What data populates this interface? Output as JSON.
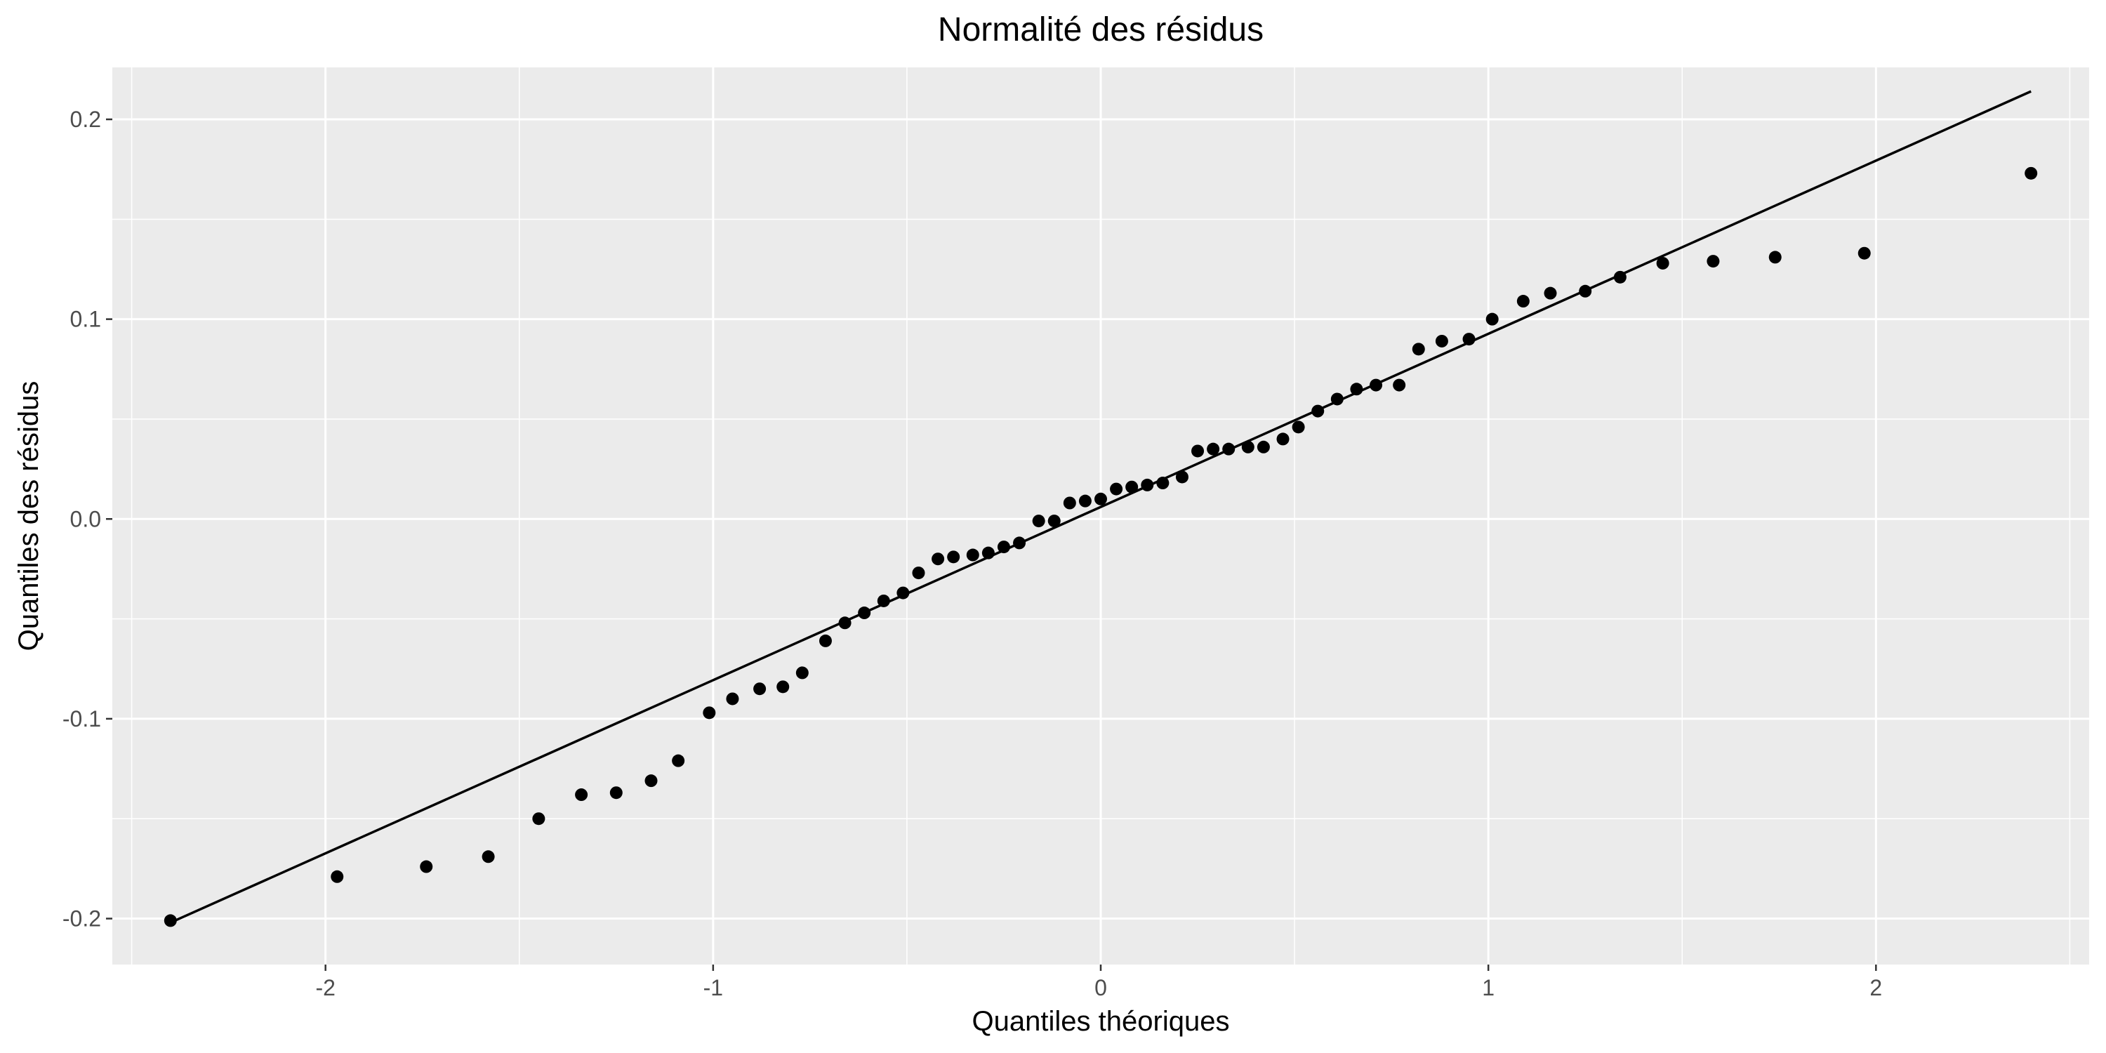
{
  "chart_data": {
    "type": "scatter",
    "title": "Normalité des résidus",
    "xlabel": "Quantiles théoriques",
    "ylabel": "Quantiles des résidus",
    "xlim": [
      -2.55,
      2.55
    ],
    "ylim": [
      -0.223,
      0.226
    ],
    "x_ticks": [
      -2,
      -1,
      0,
      1,
      2
    ],
    "x_tick_labels": [
      "-2",
      "-1",
      "0",
      "1",
      "2"
    ],
    "y_ticks": [
      -0.2,
      -0.1,
      0.0,
      0.1,
      0.2
    ],
    "y_tick_labels": [
      "-0.2",
      "-0.1",
      "0.0",
      "0.1",
      "0.2"
    ],
    "grid": true,
    "background": "#ebebeb",
    "point_color": "#000000",
    "series": [
      {
        "points": [
          [
            -2.4,
            -0.201
          ],
          [
            -1.97,
            -0.179
          ],
          [
            -1.74,
            -0.174
          ],
          [
            -1.58,
            -0.169
          ],
          [
            -1.45,
            -0.15
          ],
          [
            -1.34,
            -0.138
          ],
          [
            -1.25,
            -0.137
          ],
          [
            -1.16,
            -0.131
          ],
          [
            -1.09,
            -0.121
          ],
          [
            -1.01,
            -0.097
          ],
          [
            -0.95,
            -0.09
          ],
          [
            -0.88,
            -0.085
          ],
          [
            -0.82,
            -0.084
          ],
          [
            -0.77,
            -0.077
          ],
          [
            -0.71,
            -0.061
          ],
          [
            -0.66,
            -0.052
          ],
          [
            -0.61,
            -0.047
          ],
          [
            -0.56,
            -0.041
          ],
          [
            -0.51,
            -0.037
          ],
          [
            -0.47,
            -0.027
          ],
          [
            -0.42,
            -0.02
          ],
          [
            -0.38,
            -0.019
          ],
          [
            -0.33,
            -0.018
          ],
          [
            -0.29,
            -0.017
          ],
          [
            -0.25,
            -0.014
          ],
          [
            -0.21,
            -0.012
          ],
          [
            -0.16,
            -0.001
          ],
          [
            -0.12,
            -0.001
          ],
          [
            -0.08,
            0.008
          ],
          [
            -0.04,
            0.009
          ],
          [
            0.0,
            0.01
          ],
          [
            0.04,
            0.015
          ],
          [
            0.08,
            0.016
          ],
          [
            0.12,
            0.017
          ],
          [
            0.16,
            0.018
          ],
          [
            0.21,
            0.021
          ],
          [
            0.25,
            0.034
          ],
          [
            0.29,
            0.035
          ],
          [
            0.33,
            0.035
          ],
          [
            0.38,
            0.036
          ],
          [
            0.42,
            0.036
          ],
          [
            0.47,
            0.04
          ],
          [
            0.51,
            0.046
          ],
          [
            0.56,
            0.054
          ],
          [
            0.61,
            0.06
          ],
          [
            0.66,
            0.065
          ],
          [
            0.71,
            0.067
          ],
          [
            0.77,
            0.067
          ],
          [
            0.82,
            0.085
          ],
          [
            0.88,
            0.089
          ],
          [
            0.95,
            0.09
          ],
          [
            1.01,
            0.1
          ],
          [
            1.09,
            0.109
          ],
          [
            1.16,
            0.113
          ],
          [
            1.25,
            0.114
          ],
          [
            1.34,
            0.121
          ],
          [
            1.45,
            0.128
          ],
          [
            1.58,
            0.129
          ],
          [
            1.74,
            0.131
          ],
          [
            1.97,
            0.133
          ],
          [
            2.4,
            0.173
          ]
        ]
      }
    ],
    "reference_line": {
      "from": [
        -2.4,
        -0.202
      ],
      "to": [
        2.4,
        0.214
      ],
      "color": "#000000"
    }
  }
}
